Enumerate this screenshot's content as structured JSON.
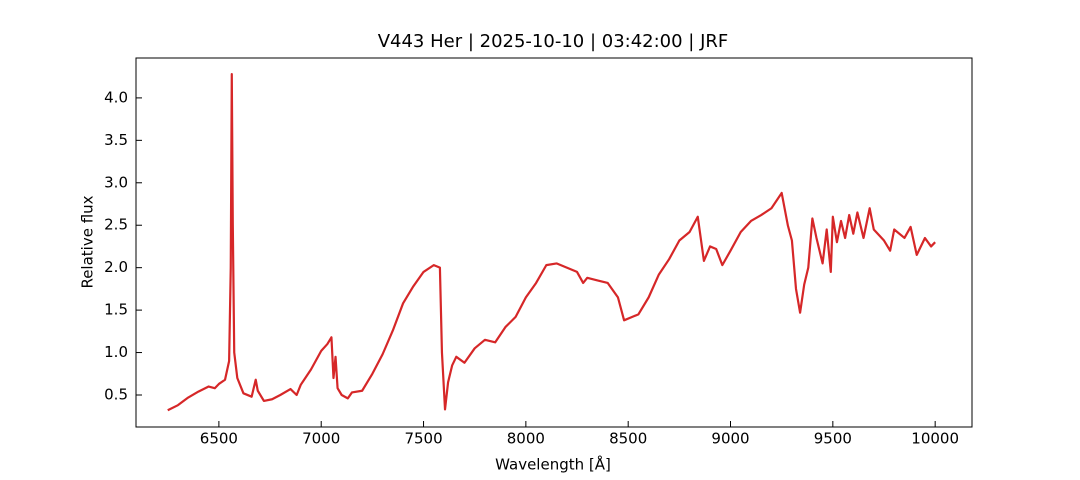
{
  "chart_data": {
    "type": "line",
    "title": "V443 Her | 2025-10-10 | 03:42:00 | JRF",
    "xlabel": "Wavelength [Å]",
    "ylabel": "Relative flux",
    "xlim": [
      6095,
      10180
    ],
    "ylim": [
      0.123,
      4.47
    ],
    "xticks": [
      6500,
      7000,
      7500,
      8000,
      8500,
      9000,
      9500,
      10000
    ],
    "yticks": [
      0.5,
      {
        "value": 1,
        "label": "1.0"
      },
      1.5,
      {
        "value": 2,
        "label": "2.0"
      },
      2.5,
      {
        "value": 3,
        "label": "3.0"
      },
      3.5,
      {
        "value": 4,
        "label": "4.0"
      }
    ],
    "grid": false,
    "series": [
      {
        "color": "#d62728",
        "x": [
          6250,
          6300,
          6350,
          6400,
          6450,
          6480,
          6500,
          6530,
          6550,
          6558,
          6563,
          6568,
          6575,
          6590,
          6620,
          6660,
          6680,
          6690,
          6720,
          6760,
          6800,
          6850,
          6880,
          6900,
          6950,
          7000,
          7030,
          7050,
          7060,
          7070,
          7080,
          7100,
          7130,
          7150,
          7200,
          7250,
          7300,
          7350,
          7400,
          7450,
          7500,
          7550,
          7580,
          7590,
          7605,
          7620,
          7640,
          7660,
          7700,
          7750,
          7800,
          7850,
          7900,
          7950,
          8000,
          8050,
          8100,
          8150,
          8200,
          8250,
          8280,
          8300,
          8350,
          8400,
          8450,
          8480,
          8520,
          8550,
          8600,
          8650,
          8700,
          8750,
          8800,
          8840,
          8870,
          8900,
          8930,
          8960,
          9000,
          9050,
          9100,
          9150,
          9200,
          9250,
          9280,
          9300,
          9320,
          9340,
          9360,
          9380,
          9400,
          9420,
          9450,
          9470,
          9490,
          9500,
          9520,
          9540,
          9560,
          9580,
          9600,
          9620,
          9650,
          9680,
          9700,
          9750,
          9780,
          9800,
          9850,
          9880,
          9910,
          9950,
          9980,
          10000
        ],
        "values": [
          0.32,
          0.38,
          0.47,
          0.54,
          0.6,
          0.58,
          0.63,
          0.68,
          0.9,
          2.0,
          4.28,
          2.5,
          1.0,
          0.7,
          0.52,
          0.48,
          0.68,
          0.55,
          0.43,
          0.45,
          0.5,
          0.57,
          0.5,
          0.62,
          0.8,
          1.02,
          1.1,
          1.18,
          0.7,
          0.95,
          0.58,
          0.5,
          0.46,
          0.53,
          0.55,
          0.75,
          0.98,
          1.26,
          1.58,
          1.78,
          1.95,
          2.03,
          2.0,
          1.0,
          0.33,
          0.65,
          0.85,
          0.95,
          0.88,
          1.05,
          1.15,
          1.12,
          1.3,
          1.42,
          1.65,
          1.82,
          2.03,
          2.05,
          2.0,
          1.95,
          1.82,
          1.88,
          1.85,
          1.82,
          1.65,
          1.38,
          1.42,
          1.45,
          1.65,
          1.92,
          2.1,
          2.32,
          2.42,
          2.6,
          2.08,
          2.25,
          2.22,
          2.03,
          2.2,
          2.42,
          2.55,
          2.62,
          2.7,
          2.88,
          2.5,
          2.32,
          1.75,
          1.47,
          1.8,
          2.0,
          2.58,
          2.35,
          2.05,
          2.45,
          1.95,
          2.6,
          2.3,
          2.55,
          2.35,
          2.62,
          2.4,
          2.65,
          2.35,
          2.7,
          2.45,
          2.32,
          2.2,
          2.45,
          2.35,
          2.48,
          2.15,
          2.35,
          2.25,
          2.3
        ]
      }
    ]
  }
}
